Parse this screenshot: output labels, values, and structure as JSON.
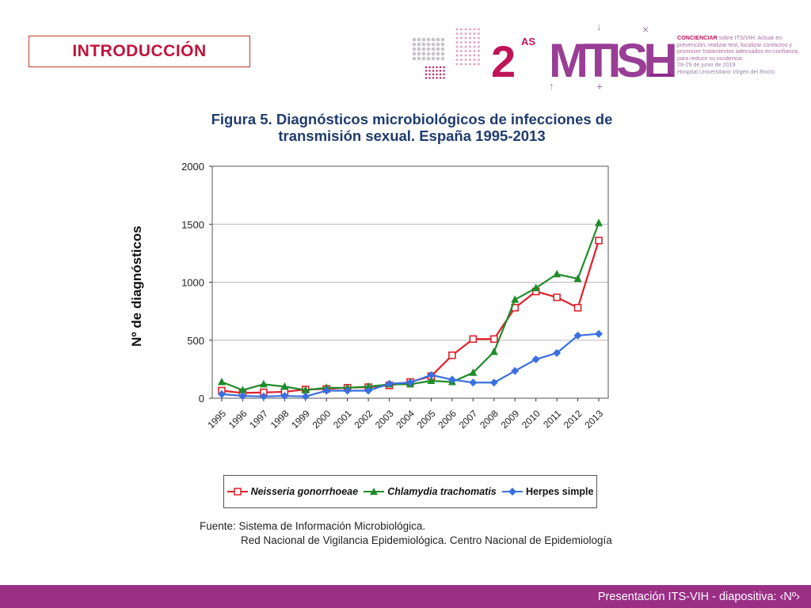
{
  "section": {
    "title": "INTRODUCCIÓN"
  },
  "logo": {
    "edition": "2",
    "edition_sup": "AS",
    "wordmark": "MTISH",
    "tagline_bold": "CONCIENCIAR",
    "tagline": "sobre ITS/VIH: Actuar en prevención, realizar test, localizar contactos y promover tratamientos adecuados en confianza, para reducir su incidencia.",
    "date": "28-29 de junio de 2019",
    "venue": "Hospital Universitario Virgen del Rocío",
    "colors": {
      "magenta": "#c0145a",
      "purple": "#8e2a8a",
      "pink": "#e49bc4",
      "grey": "#c9c1cc"
    }
  },
  "figure": {
    "title_line1": "Figura 5. Diagnósticos microbiológicos de infecciones de",
    "title_line2": "transmisión sexual. España 1995-2013"
  },
  "chart_data": {
    "type": "line",
    "ylabel": "Nº de diagnósticos",
    "xlabel": "",
    "ylim": [
      0,
      2000
    ],
    "yticks": [
      0,
      500,
      1000,
      1500,
      2000
    ],
    "grid": true,
    "legend_position": "bottom",
    "x": [
      "1995",
      "1996",
      "1997",
      "1998",
      "1999",
      "2000",
      "2001",
      "2002",
      "2003",
      "2004",
      "2005",
      "2006",
      "2007",
      "2008",
      "2009",
      "2010",
      "2011",
      "2012",
      "2013"
    ],
    "series": [
      {
        "name": "Neisseria gonorrhoeae",
        "color": "#e0202a",
        "marker": "square-open",
        "values": [
          65,
          45,
          50,
          55,
          75,
          80,
          90,
          95,
          110,
          140,
          190,
          370,
          510,
          510,
          780,
          920,
          870,
          780,
          1360
        ]
      },
      {
        "name": "Chlamydia trachomatis",
        "color": "#1e8c2a",
        "marker": "triangle",
        "values": [
          140,
          70,
          120,
          100,
          70,
          90,
          90,
          100,
          120,
          120,
          150,
          140,
          220,
          400,
          850,
          950,
          1070,
          1030,
          1510
        ]
      },
      {
        "name": "Herpes simple",
        "color": "#3a6fe0",
        "marker": "diamond",
        "values": [
          35,
          20,
          15,
          20,
          15,
          65,
          65,
          65,
          125,
          135,
          200,
          160,
          135,
          135,
          235,
          335,
          390,
          540,
          555
        ]
      }
    ]
  },
  "source": {
    "line1": "Fuente: Sistema de Información Microbiológica.",
    "line2": "Red Nacional de Vigilancia Epidemiológica. Centro Nacional de Epidemiología"
  },
  "footer": {
    "text": "Presentación ITS-VIH  - diapositiva:  ‹Nº›"
  }
}
